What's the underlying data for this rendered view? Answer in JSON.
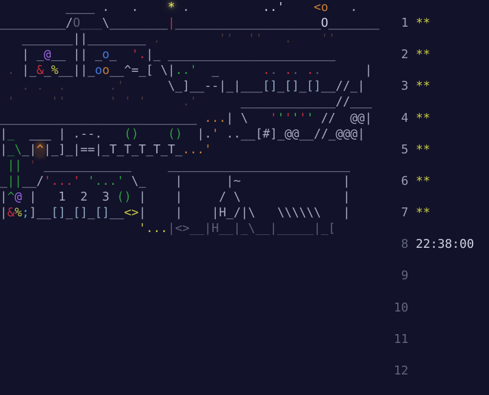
{
  "terminal": {
    "clock": "22:38:00",
    "palette": {
      "fg": "#a6aabf",
      "bright": "#ccd0e2",
      "dim": "#5b5f75",
      "ghost": "#4a383b",
      "ghostred": "#6a2a2e",
      "red": "#c5303a",
      "green": "#2f9e3f",
      "bgreen": "#2fb544",
      "yellow": "#c9c944",
      "star": "#e8e85a",
      "orange": "#c97f35",
      "caret": "#e8963c",
      "blue": "#4379d6",
      "purple": "#9d68e3",
      "cyan": "#3ab5c5",
      "steel": "#8fa6bf",
      "num": "#999fb3",
      "numdim": "#62677c",
      "clock": "#ced2e2"
    },
    "rows": [
      {
        "cells": [
          [
            "         ____ .   .    ",
            "fg"
          ],
          [
            "*",
            "star"
          ],
          [
            " .          ",
            "fg"
          ],
          [
            "..'",
            "bright"
          ],
          [
            "    ",
            "fg"
          ],
          [
            "<o",
            "orange"
          ],
          [
            "   .",
            "fg"
          ]
        ]
      },
      {
        "cells": [
          [
            "_________/",
            "fg"
          ],
          [
            "O___",
            "dim"
          ],
          [
            "\\________",
            "fg"
          ],
          [
            "|",
            "red"
          ],
          [
            "____________________",
            "fg"
          ],
          [
            "O",
            "bright"
          ],
          [
            "_______",
            "fg"
          ]
        ],
        "gutter": {
          "num": "1",
          "num_color": "num",
          "value": "**",
          "value_color": "yellow"
        }
      },
      {
        "cells": [
          [
            "   ",
            "fg"
          ],
          [
            "_______||________",
            "fg"
          ],
          [
            " ",
            "fg"
          ],
          [
            ".",
            "ghost"
          ],
          [
            "        ",
            "fg"
          ],
          [
            "''",
            "ghost"
          ],
          [
            "  ",
            "fg"
          ],
          [
            "''",
            "ghost"
          ],
          [
            "   ",
            "fg"
          ],
          [
            ".",
            "ghost"
          ],
          [
            "    ",
            "fg"
          ],
          [
            "''",
            "ghost"
          ]
        ]
      },
      {
        "cells": [
          [
            "   | ",
            "fg"
          ],
          [
            "_",
            "fg"
          ],
          [
            "@",
            "purple"
          ],
          [
            "__ ",
            "fg"
          ],
          [
            "||",
            "fg"
          ],
          [
            " _",
            "fg"
          ],
          [
            "o",
            "blue"
          ],
          [
            "_  ",
            "fg"
          ],
          [
            "'.",
            "red"
          ],
          [
            "|_",
            "fg"
          ],
          [
            " ",
            "fg"
          ],
          [
            "_______________________",
            "fg"
          ]
        ],
        "gutter": {
          "num": "2",
          "num_color": "num",
          "value": "**",
          "value_color": "yellow"
        }
      },
      {
        "cells": [
          [
            " ",
            "fg"
          ],
          [
            ".",
            "ghost"
          ],
          [
            " ",
            "fg"
          ],
          [
            "|_",
            "fg"
          ],
          [
            "&",
            "red"
          ],
          [
            "_",
            "fg"
          ],
          [
            "%",
            "yellow"
          ],
          [
            "__",
            "fg"
          ],
          [
            "||",
            "fg"
          ],
          [
            "_",
            "fg"
          ],
          [
            "o",
            "blue"
          ],
          [
            "o",
            "orange"
          ],
          [
            "__^=_[",
            "fg"
          ],
          [
            " ",
            "fg"
          ],
          [
            "\\|",
            "fg"
          ],
          [
            "..'",
            "green"
          ],
          [
            "  ",
            "fg"
          ],
          [
            "_",
            "fg"
          ],
          [
            "      ",
            "fg"
          ],
          [
            ".",
            "red"
          ],
          [
            ".",
            "dim"
          ],
          [
            " ",
            "fg"
          ],
          [
            ".",
            "red"
          ],
          [
            ".",
            "dim"
          ],
          [
            " ",
            "fg"
          ],
          [
            ".",
            "red"
          ],
          [
            ".",
            "dim"
          ],
          [
            "      ",
            "fg"
          ],
          [
            "|",
            "fg"
          ]
        ]
      },
      {
        "cells": [
          [
            "   ",
            "fg"
          ],
          [
            ".",
            "ghost"
          ],
          [
            " ",
            "fg"
          ],
          [
            ".",
            "ghost"
          ],
          [
            "  ",
            "fg"
          ],
          [
            ".",
            "ghost"
          ],
          [
            "      ",
            "fg"
          ],
          [
            ".'",
            "ghost"
          ],
          [
            "      ",
            "fg"
          ],
          [
            "\\_]__--|_|___",
            "fg"
          ],
          [
            "[]",
            "steel"
          ],
          [
            "_",
            "fg"
          ],
          [
            "[]",
            "steel"
          ],
          [
            "_",
            "fg"
          ],
          [
            "[]",
            "steel"
          ],
          [
            "__//_|",
            "fg"
          ]
        ],
        "gutter": {
          "num": "3",
          "num_color": "num",
          "value": "**",
          "value_color": "yellow"
        }
      },
      {
        "cells": [
          [
            " ",
            "fg"
          ],
          [
            "'",
            "ghost"
          ],
          [
            "     ",
            "fg"
          ],
          [
            "''",
            "ghost"
          ],
          [
            "      ",
            "fg"
          ],
          [
            "'",
            "ghost"
          ],
          [
            " ",
            "fg"
          ],
          [
            "'",
            "ghost"
          ],
          [
            " ",
            "fg"
          ],
          [
            "'",
            "ghost"
          ],
          [
            "     ",
            "fg"
          ],
          [
            ".'",
            "ghost"
          ],
          [
            "      ",
            "fg"
          ],
          [
            "_____________//___",
            "fg"
          ]
        ]
      },
      {
        "cells": [
          [
            "___________________________",
            "fg"
          ],
          [
            " ",
            "fg"
          ],
          [
            "...",
            "orange"
          ],
          [
            "|",
            "fg"
          ],
          [
            " ",
            "fg"
          ],
          [
            "\\",
            "fg"
          ],
          [
            "   ",
            "fg"
          ],
          [
            "'",
            "red"
          ],
          [
            "'",
            "bgreen"
          ],
          [
            "'",
            "red"
          ],
          [
            "'",
            "bgreen"
          ],
          [
            "'",
            "red"
          ],
          [
            "'",
            "bgreen"
          ],
          [
            " ",
            "fg"
          ],
          [
            "//",
            "fg"
          ],
          [
            "  ",
            "fg"
          ],
          [
            "@@",
            "fg"
          ],
          [
            "|",
            "fg"
          ]
        ],
        "gutter": {
          "num": "4",
          "num_color": "num",
          "value": "**",
          "value_color": "yellow"
        }
      },
      {
        "cells": [
          [
            "|",
            "fg"
          ],
          [
            "_",
            "green"
          ],
          [
            "  ",
            "fg"
          ],
          [
            "___",
            "bright"
          ],
          [
            " ",
            "fg"
          ],
          [
            "|",
            "fg"
          ],
          [
            " ",
            "fg"
          ],
          [
            ".--.",
            "fg"
          ],
          [
            "   ",
            "fg"
          ],
          [
            "()",
            "green"
          ],
          [
            "    ",
            "fg"
          ],
          [
            "()",
            "green"
          ],
          [
            "  ",
            "fg"
          ],
          [
            "|",
            "fg"
          ],
          [
            ".",
            "fg"
          ],
          [
            "'",
            "orange"
          ],
          [
            " ",
            "fg"
          ],
          [
            "..",
            "fg"
          ],
          [
            "__",
            "fg"
          ],
          [
            "[#]",
            "fg"
          ],
          [
            "_",
            "fg"
          ],
          [
            "@@",
            "fg"
          ],
          [
            "__",
            "fg"
          ],
          [
            "//",
            "fg"
          ],
          [
            "_",
            "fg"
          ],
          [
            "@@@",
            "fg"
          ],
          [
            "|",
            "fg"
          ]
        ]
      },
      {
        "cells": [
          [
            "|",
            "fg"
          ],
          [
            "_\\",
            "green"
          ],
          [
            "_",
            "fg"
          ],
          [
            "|",
            "fg"
          ],
          [
            "^",
            "caret"
          ],
          [
            "|",
            "fg"
          ],
          [
            "_]_",
            "fg"
          ],
          [
            "|",
            "fg"
          ],
          [
            "==",
            "fg"
          ],
          [
            "|",
            "fg"
          ],
          [
            "_T_T_T_T_T_",
            "fg"
          ],
          [
            "...",
            "orange"
          ],
          [
            "'",
            "orange"
          ]
        ],
        "gutter": {
          "num": "5",
          "num_color": "num",
          "value": "**",
          "value_color": "yellow"
        }
      },
      {
        "cells": [
          [
            " ",
            "fg"
          ],
          [
            "||",
            "green"
          ],
          [
            " ",
            "fg"
          ],
          [
            "'",
            "ghostred"
          ],
          [
            " ",
            "fg"
          ],
          [
            "____________",
            "fg"
          ],
          [
            "     ",
            "fg"
          ],
          [
            "_________________________",
            "fg"
          ]
        ]
      },
      {
        "cells": [
          [
            "_",
            "fg"
          ],
          [
            "||",
            "green"
          ],
          [
            "__",
            "fg"
          ],
          [
            "/",
            "fg"
          ],
          [
            "'...'",
            "red"
          ],
          [
            " ",
            "fg"
          ],
          [
            "'...'",
            "green"
          ],
          [
            " ",
            "fg"
          ],
          [
            "\\_",
            "fg"
          ],
          [
            "    ",
            "fg"
          ],
          [
            "|",
            "fg"
          ],
          [
            "      ",
            "fg"
          ],
          [
            "|~",
            "fg"
          ],
          [
            "              ",
            "fg"
          ],
          [
            "|",
            "fg"
          ]
        ],
        "gutter": {
          "num": "6",
          "num_color": "num",
          "value": "**",
          "value_color": "yellow"
        }
      },
      {
        "cells": [
          [
            "|",
            "fg"
          ],
          [
            "^",
            "green"
          ],
          [
            "@",
            "purple"
          ],
          [
            " ",
            "fg"
          ],
          [
            "|",
            "fg"
          ],
          [
            "   ",
            "fg"
          ],
          [
            "1",
            "fg"
          ],
          [
            "  ",
            "fg"
          ],
          [
            "2",
            "fg"
          ],
          [
            "  ",
            "fg"
          ],
          [
            "3",
            "fg"
          ],
          [
            " ",
            "fg"
          ],
          [
            "()",
            "green"
          ],
          [
            " ",
            "fg"
          ],
          [
            "|",
            "fg"
          ],
          [
            "    ",
            "fg"
          ],
          [
            "|",
            "fg"
          ],
          [
            "     ",
            "fg"
          ],
          [
            "/",
            "fg"
          ],
          [
            " ",
            "fg"
          ],
          [
            "\\",
            "fg"
          ],
          [
            "              ",
            "fg"
          ],
          [
            "|",
            "fg"
          ]
        ]
      },
      {
        "cells": [
          [
            "|",
            "fg"
          ],
          [
            "&",
            "red"
          ],
          [
            "%",
            "yellow"
          ],
          [
            ";",
            "cyan"
          ],
          [
            "]",
            "fg"
          ],
          [
            "__",
            "fg"
          ],
          [
            "[]",
            "steel"
          ],
          [
            "_",
            "fg"
          ],
          [
            "[]",
            "steel"
          ],
          [
            "_",
            "fg"
          ],
          [
            "[]",
            "steel"
          ],
          [
            "__",
            "fg"
          ],
          [
            "<>",
            "yellow"
          ],
          [
            "|",
            "fg"
          ],
          [
            "    ",
            "fg"
          ],
          [
            "|",
            "fg"
          ],
          [
            "    ",
            "fg"
          ],
          [
            "|H_/|\\",
            "fg"
          ],
          [
            "   ",
            "fg"
          ],
          [
            "\\\\\\\\\\\\",
            "fg"
          ],
          [
            "   ",
            "fg"
          ],
          [
            "|",
            "fg"
          ]
        ],
        "gutter": {
          "num": "7",
          "num_color": "num",
          "value": "**",
          "value_color": "yellow"
        }
      },
      {
        "cells": [
          [
            "                   ",
            "dim"
          ],
          [
            "'...",
            "yellow"
          ],
          [
            "|<>__|H__|_\\__|_____|_[",
            "dim"
          ]
        ]
      },
      {
        "cells": [],
        "gutter": {
          "num": "8",
          "num_color": "numdim",
          "value": "22:38:00",
          "value_color": "clock"
        }
      },
      {
        "cells": []
      },
      {
        "cells": [],
        "gutter": {
          "num": "9",
          "num_color": "numdim",
          "value": "",
          "value_color": "numdim"
        }
      },
      {
        "cells": []
      },
      {
        "cells": [],
        "gutter": {
          "num": "10",
          "num_color": "numdim",
          "value": "",
          "value_color": "numdim"
        }
      },
      {
        "cells": []
      },
      {
        "cells": [],
        "gutter": {
          "num": "11",
          "num_color": "numdim",
          "value": "",
          "value_color": "numdim"
        }
      },
      {
        "cells": []
      },
      {
        "cells": [],
        "gutter": {
          "num": "12",
          "num_color": "numdim",
          "value": "",
          "value_color": "numdim"
        }
      },
      {
        "cells": []
      }
    ]
  }
}
